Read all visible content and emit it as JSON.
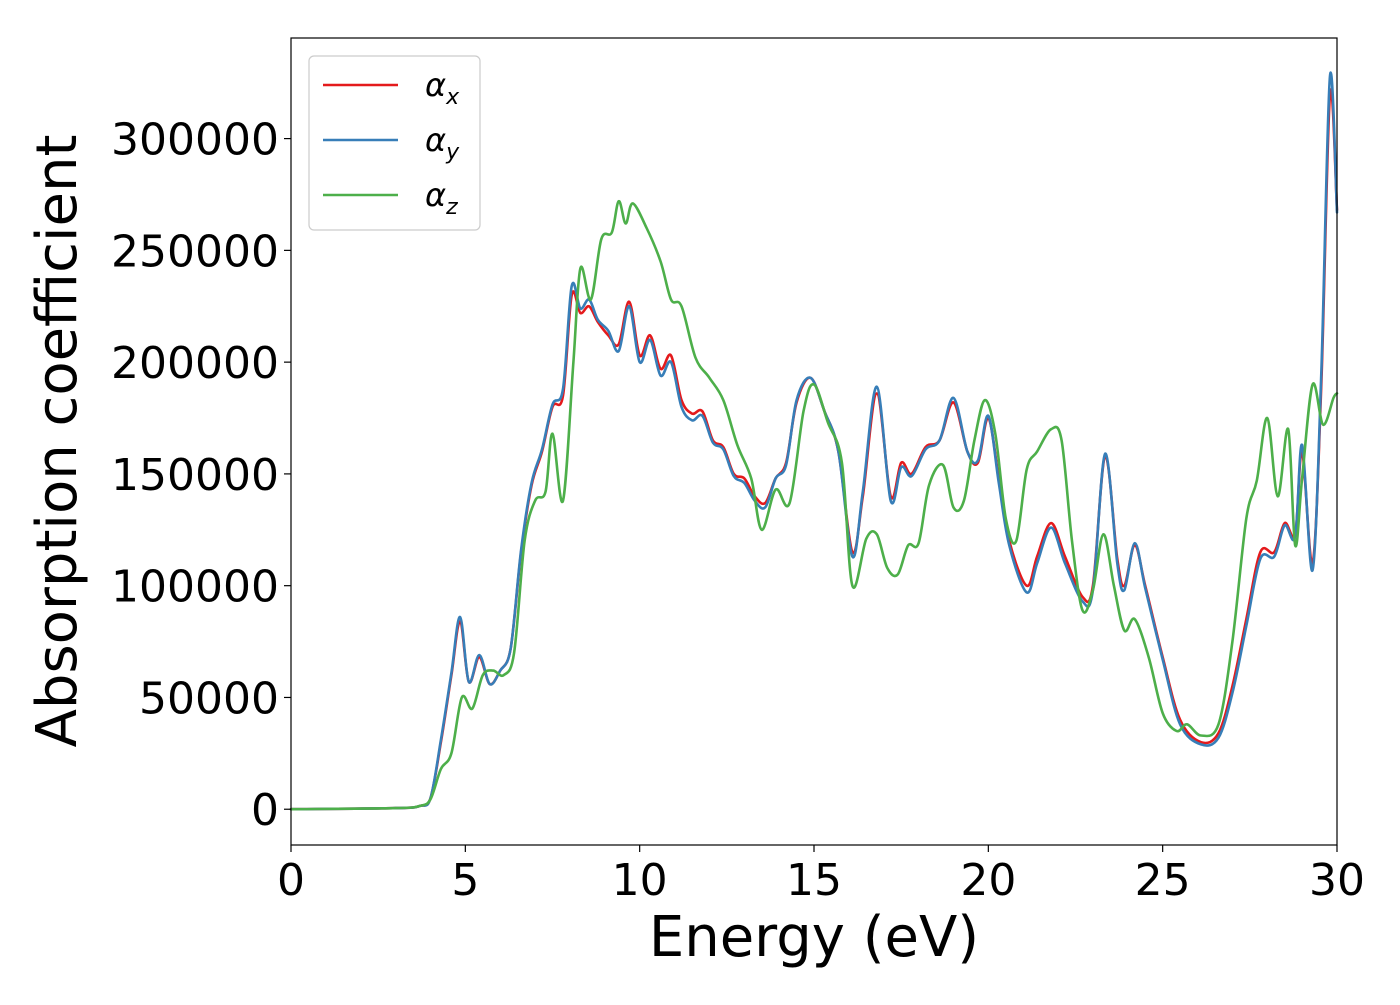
{
  "chart_data": {
    "type": "line",
    "title": "",
    "xlabel": "Energy (eV)",
    "ylabel": "Absorption coefficient",
    "xlim": [
      0,
      30
    ],
    "ylim": [
      -16000,
      345000
    ],
    "xticks": [
      0,
      5,
      10,
      15,
      20,
      25,
      30
    ],
    "yticks": [
      0,
      50000,
      100000,
      150000,
      200000,
      250000,
      300000
    ],
    "grid": false,
    "legend": {
      "placement": "top-left",
      "frame": true
    },
    "series": [
      {
        "name": "α",
        "subscript": "x",
        "color": "#e41a1c",
        "x": [
          0,
          3,
          3.7,
          4.0,
          4.3,
          4.6,
          4.85,
          5.1,
          5.4,
          5.7,
          6.0,
          6.3,
          6.6,
          6.9,
          7.2,
          7.5,
          7.8,
          8.05,
          8.3,
          8.55,
          8.8,
          9.1,
          9.4,
          9.7,
          10.0,
          10.3,
          10.6,
          10.9,
          11.2,
          11.5,
          11.8,
          12.1,
          12.4,
          12.7,
          13.0,
          13.3,
          13.6,
          13.9,
          14.2,
          14.5,
          14.9,
          15.3,
          15.7,
          16.1,
          16.4,
          16.8,
          17.2,
          17.5,
          17.8,
          18.2,
          18.6,
          19.0,
          19.4,
          19.7,
          20.0,
          20.3,
          20.6,
          21.1,
          21.4,
          21.8,
          22.2,
          22.7,
          23.0,
          23.35,
          23.7,
          23.9,
          24.2,
          24.5,
          25.0,
          25.5,
          26.1,
          26.6,
          27.0,
          27.4,
          27.8,
          28.2,
          28.5,
          28.8,
          29.0,
          29.3,
          29.55,
          29.8,
          30.0
        ],
        "y": [
          0,
          500,
          1500,
          5000,
          30000,
          60000,
          84000,
          57000,
          68000,
          56000,
          62000,
          72000,
          115000,
          145000,
          160000,
          180000,
          185000,
          230000,
          222000,
          225000,
          218000,
          212000,
          208000,
          227000,
          203000,
          212000,
          197000,
          203000,
          183000,
          177000,
          178000,
          165000,
          162000,
          150000,
          148000,
          140000,
          137000,
          148000,
          155000,
          182000,
          193000,
          178000,
          160000,
          115000,
          140000,
          186000,
          140000,
          155000,
          150000,
          162000,
          165000,
          182000,
          160000,
          155000,
          175000,
          148000,
          120000,
          100000,
          113000,
          128000,
          113000,
          95000,
          100000,
          158000,
          112000,
          100000,
          118000,
          100000,
          68000,
          40000,
          30000,
          34000,
          55000,
          85000,
          115000,
          115000,
          128000,
          123000,
          160000,
          110000,
          190000,
          320000,
          268000
        ]
      },
      {
        "name": "α",
        "subscript": "y",
        "color": "#377eb8",
        "x": [
          0,
          3,
          3.7,
          4.0,
          4.3,
          4.6,
          4.85,
          5.1,
          5.4,
          5.7,
          6.0,
          6.3,
          6.6,
          6.9,
          7.2,
          7.5,
          7.8,
          8.05,
          8.3,
          8.55,
          8.8,
          9.1,
          9.4,
          9.7,
          10.0,
          10.3,
          10.6,
          10.9,
          11.2,
          11.5,
          11.8,
          12.1,
          12.4,
          12.7,
          13.0,
          13.3,
          13.6,
          13.9,
          14.2,
          14.5,
          14.9,
          15.3,
          15.7,
          16.1,
          16.4,
          16.8,
          17.2,
          17.5,
          17.8,
          18.2,
          18.6,
          19.0,
          19.4,
          19.7,
          20.0,
          20.3,
          20.6,
          21.1,
          21.4,
          21.8,
          22.2,
          22.7,
          23.0,
          23.35,
          23.7,
          23.9,
          24.2,
          24.5,
          25.0,
          25.5,
          26.1,
          26.6,
          27.0,
          27.4,
          27.8,
          28.2,
          28.5,
          28.8,
          29.0,
          29.3,
          29.55,
          29.8,
          30.0
        ],
        "y": [
          0,
          500,
          1500,
          5000,
          31000,
          61000,
          86000,
          57000,
          69000,
          56000,
          62000,
          72000,
          116000,
          146000,
          161000,
          181000,
          188000,
          234000,
          224000,
          228000,
          219000,
          214000,
          205000,
          225000,
          200000,
          210000,
          194000,
          200000,
          180000,
          174000,
          176000,
          164000,
          161000,
          149000,
          146000,
          138000,
          135000,
          148000,
          154000,
          183000,
          193000,
          178000,
          160000,
          113000,
          142000,
          189000,
          138000,
          153000,
          149000,
          161000,
          165000,
          184000,
          160000,
          156000,
          176000,
          146000,
          118000,
          97000,
          110000,
          126000,
          110000,
          93000,
          98000,
          159000,
          110000,
          98000,
          119000,
          99000,
          67000,
          38000,
          29000,
          32000,
          52000,
          82000,
          112000,
          113000,
          127000,
          122000,
          163000,
          107000,
          195000,
          328000,
          267000
        ]
      },
      {
        "name": "α",
        "subscript": "z",
        "color": "#4daf4a",
        "x": [
          0,
          3,
          3.7,
          4.0,
          4.3,
          4.6,
          4.9,
          5.2,
          5.5,
          5.8,
          6.1,
          6.4,
          6.7,
          7.0,
          7.3,
          7.5,
          7.8,
          8.1,
          8.3,
          8.6,
          8.9,
          9.2,
          9.4,
          9.6,
          9.8,
          10.2,
          10.6,
          10.9,
          11.2,
          11.6,
          12.0,
          12.4,
          12.8,
          13.2,
          13.5,
          13.9,
          14.3,
          14.7,
          15.0,
          15.4,
          15.8,
          16.1,
          16.5,
          16.8,
          17.1,
          17.4,
          17.7,
          18.0,
          18.3,
          18.7,
          19.0,
          19.3,
          19.6,
          19.9,
          20.2,
          20.5,
          20.8,
          21.1,
          21.4,
          21.8,
          22.1,
          22.4,
          22.7,
          23.0,
          23.3,
          23.6,
          23.9,
          24.2,
          24.6,
          25.0,
          25.4,
          25.7,
          26.1,
          26.6,
          27.0,
          27.4,
          27.7,
          28.0,
          28.3,
          28.6,
          28.8,
          29.0,
          29.3,
          29.6,
          29.9,
          30.0
        ],
        "y": [
          0,
          500,
          1500,
          4500,
          18000,
          25000,
          50000,
          45000,
          60000,
          62000,
          60000,
          70000,
          120000,
          138000,
          142000,
          168000,
          138000,
          200000,
          242000,
          228000,
          255000,
          258000,
          272000,
          262000,
          271000,
          260000,
          245000,
          228000,
          225000,
          202000,
          193000,
          183000,
          163000,
          148000,
          125000,
          143000,
          137000,
          178000,
          190000,
          173000,
          155000,
          100000,
          121000,
          123000,
          108000,
          105000,
          118000,
          119000,
          145000,
          154000,
          135000,
          138000,
          165000,
          183000,
          168000,
          130000,
          120000,
          152000,
          160000,
          170000,
          165000,
          120000,
          89000,
          98000,
          123000,
          100000,
          80000,
          85000,
          68000,
          43000,
          35000,
          38000,
          33000,
          38000,
          75000,
          130000,
          147000,
          175000,
          140000,
          170000,
          118000,
          148000,
          190000,
          172000,
          184000,
          186000
        ]
      }
    ]
  }
}
